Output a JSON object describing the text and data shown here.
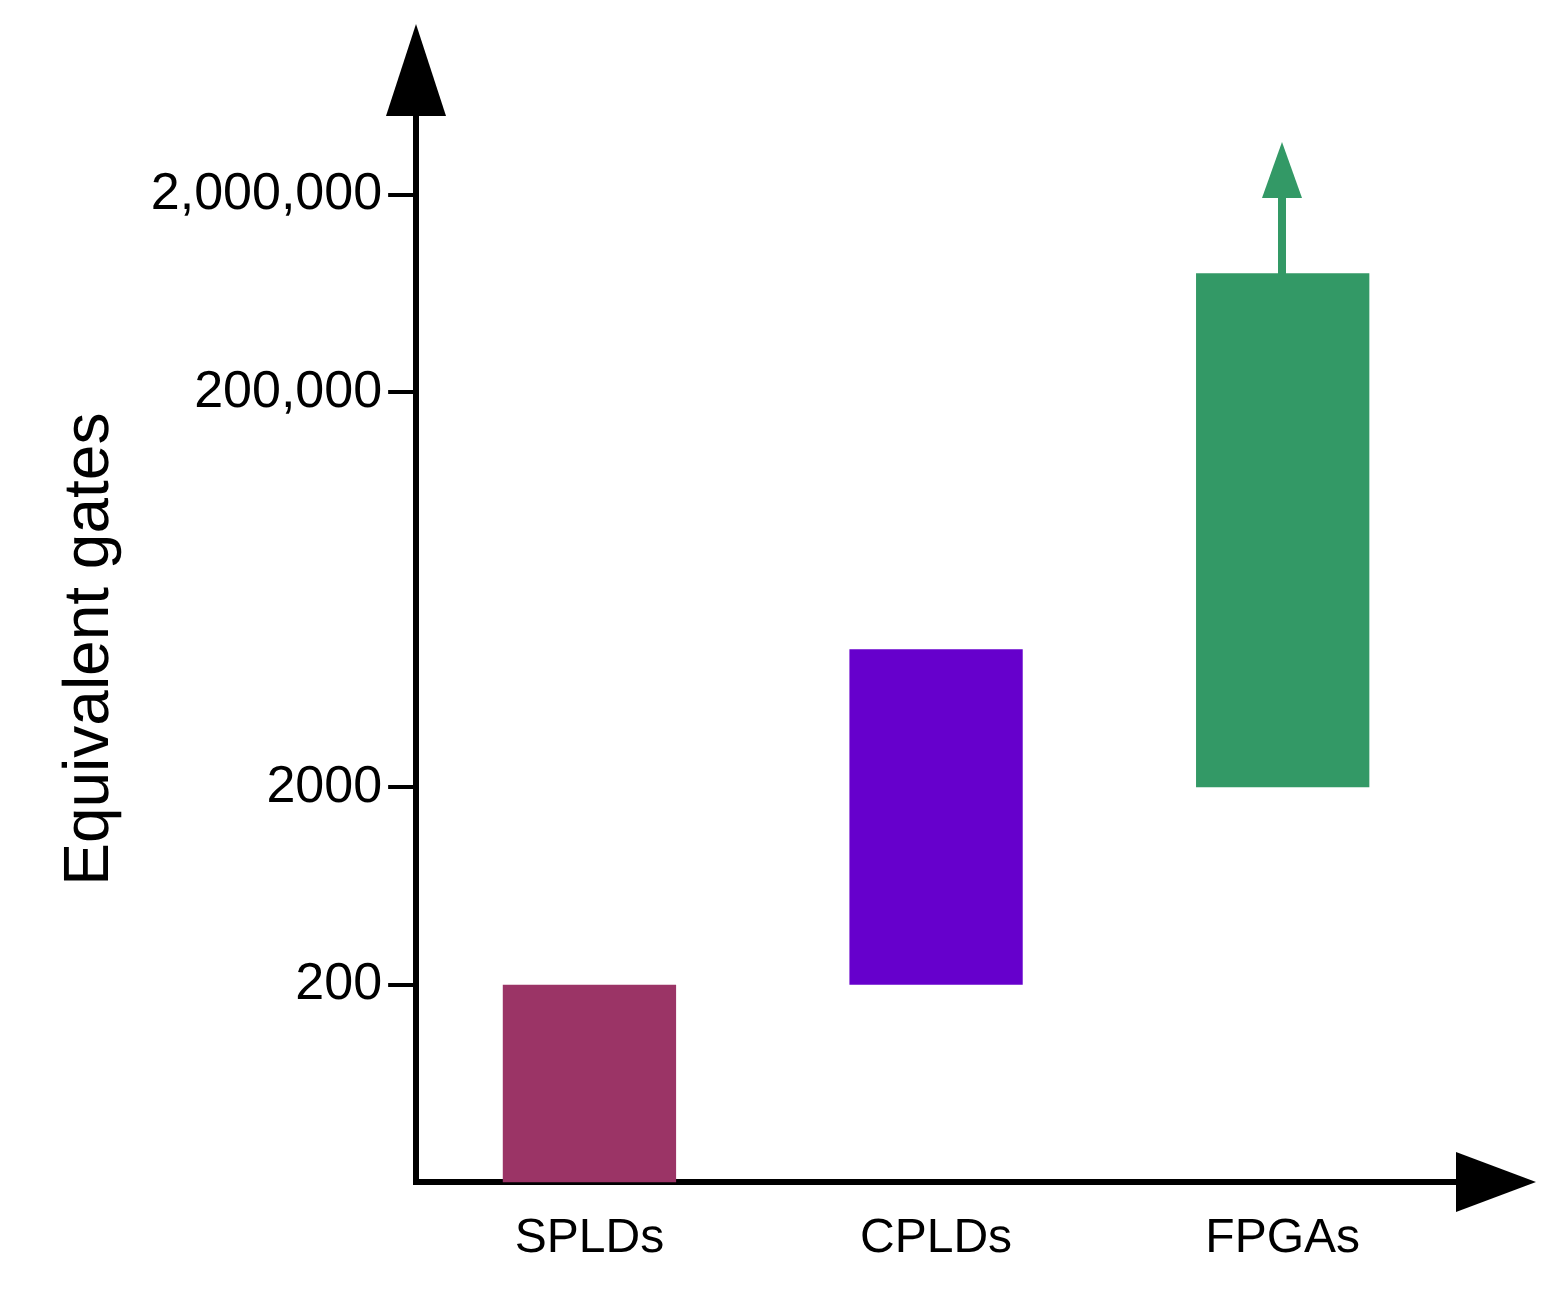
{
  "chart_data": {
    "type": "bar",
    "ylabel": "Equivalent gates",
    "categories": [
      "SPLDs",
      "CPLDs",
      "FPGAs"
    ],
    "base": [
      20,
      200,
      2000
    ],
    "values": [
      180,
      9800,
      798000
    ],
    "colors": [
      "#9b3466",
      "#6600cc",
      "#339966"
    ],
    "log": true,
    "ylim": [
      20,
      5000000
    ],
    "yticks": [
      200,
      2000,
      {
        "value": 200000,
        "label": "200,000"
      },
      {
        "value": 2000000,
        "label": "2,000,000"
      }
    ],
    "grid": false,
    "legend": false
  }
}
